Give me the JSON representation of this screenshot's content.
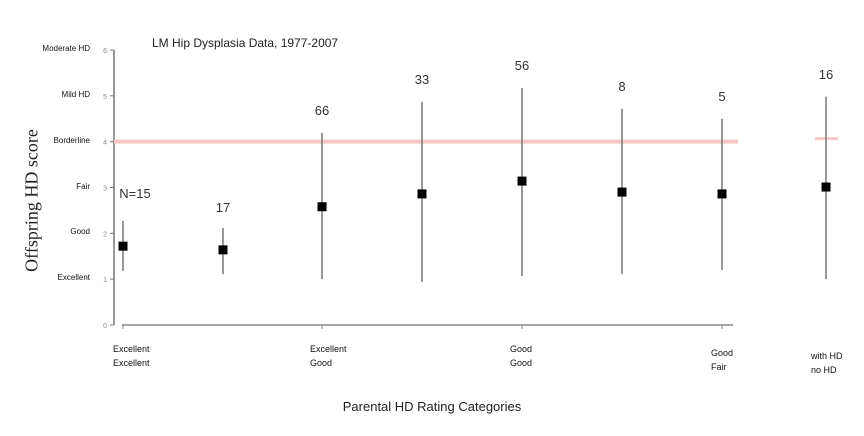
{
  "chart_data": {
    "type": "scatter",
    "title": "LM Hip Dysplasia Data, 1977-2007",
    "xlabel": "Parental HD Rating Categories",
    "ylabel": "Offspring HD score",
    "ylim": [
      0,
      6
    ],
    "yticks": [
      0,
      1,
      2,
      3,
      4,
      5,
      6
    ],
    "ytick_names": [
      "",
      "Excellent",
      "Good",
      "Fair",
      "Borderline",
      "Mild HD",
      "Moderate HD"
    ],
    "reference_line": {
      "y": 4,
      "color": "#f7c6c6"
    },
    "category_labels": [
      {
        "line1": "Excellent",
        "line2": "Excellent"
      },
      {
        "line1": "Excellent",
        "line2": "Good"
      },
      {
        "line1": "Good",
        "line2": "Good"
      },
      {
        "line1": "Good",
        "line2": "Fair"
      },
      {
        "line1": "with HD",
        "line2": "no HD"
      }
    ],
    "points": [
      {
        "n_label": "N=15",
        "mean": 1.72,
        "high": 2.27,
        "low": 1.18
      },
      {
        "n_label": "17",
        "mean": 1.64,
        "high": 2.12,
        "low": 1.11
      },
      {
        "n_label": "66",
        "mean": 2.58,
        "high": 4.19,
        "low": 1.0
      },
      {
        "n_label": "33",
        "mean": 2.86,
        "high": 4.87,
        "low": 0.94
      },
      {
        "n_label": "56",
        "mean": 3.14,
        "high": 5.17,
        "low": 1.07
      },
      {
        "n_label": "8",
        "mean": 2.9,
        "high": 4.72,
        "low": 1.11
      },
      {
        "n_label": "5",
        "mean": 2.86,
        "high": 4.5,
        "low": 1.2
      },
      {
        "n_label": "16",
        "mean": 3.01,
        "high": 4.98,
        "low": 1.0
      }
    ]
  }
}
